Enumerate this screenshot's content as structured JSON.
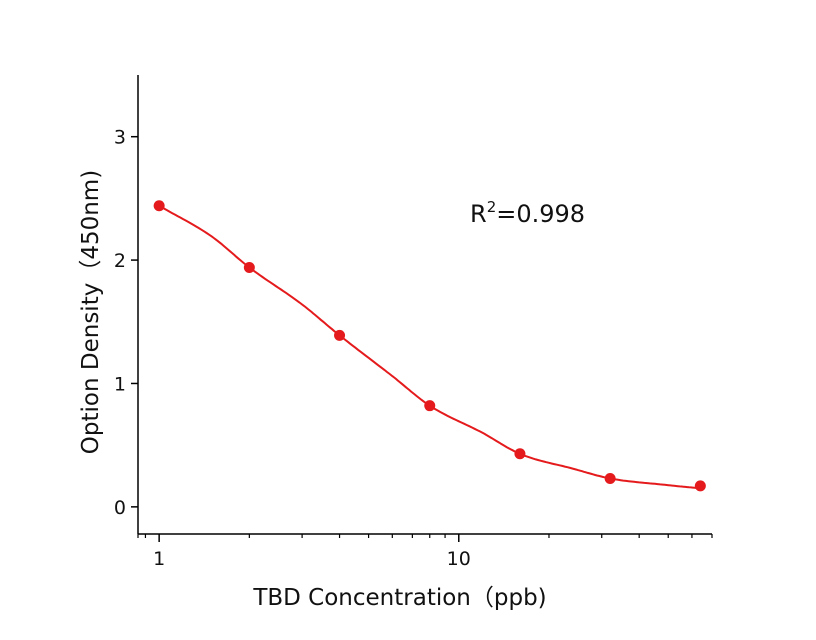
{
  "chart_data": {
    "type": "scatter",
    "xscale": "log",
    "xlabel": "TBD Concentration（ppb)",
    "ylabel": "Option Density（450nm)",
    "xlim": [
      0.85,
      70
    ],
    "ylim": [
      -0.22,
      3.5
    ],
    "xticks": [
      1,
      10
    ],
    "yticks": [
      0,
      1,
      2,
      3
    ],
    "grid": false,
    "colors": {
      "series": "#e41a1c",
      "axis": "#000000"
    },
    "annotation": {
      "base": "R",
      "sup": "2",
      "rest": "=0.998"
    },
    "series": [
      {
        "x": [
          1,
          2,
          4,
          8,
          16,
          32,
          64
        ],
        "y": [
          2.44,
          1.94,
          1.39,
          0.82,
          0.43,
          0.23,
          0.17
        ]
      }
    ],
    "fit": {
      "type": "4PL",
      "x": [
        1,
        1.5,
        2,
        3,
        4,
        6,
        8,
        12,
        16,
        24,
        32,
        48,
        64
      ],
      "y": [
        2.44,
        2.19,
        1.94,
        1.64,
        1.39,
        1.06,
        0.82,
        0.6,
        0.43,
        0.31,
        0.23,
        0.18,
        0.15
      ]
    }
  }
}
